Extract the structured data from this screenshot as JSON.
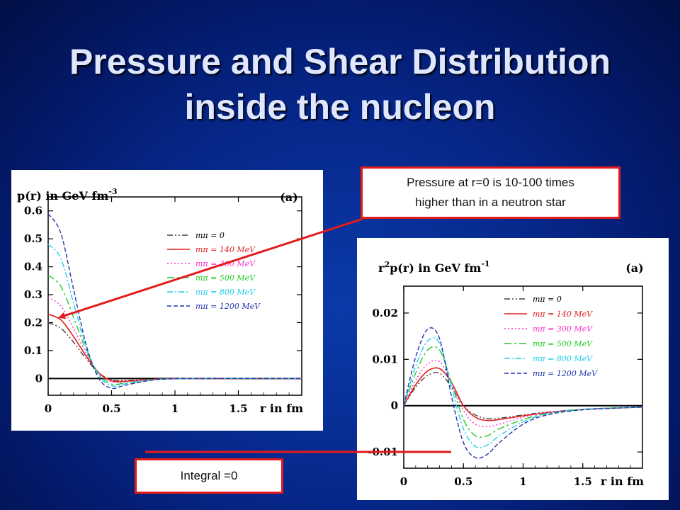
{
  "slide": {
    "title_line1": "Pressure and Shear Distribution",
    "title_line2": "inside the nucleon"
  },
  "callouts": {
    "pressure_line1": "Pressure at r=0 is 10-100 times",
    "pressure_line2": "higher than in a neutron star",
    "integral": "Integral =0"
  },
  "colors": {
    "m0": "#444444",
    "m140": "#e02020",
    "m300": "#ff33cc",
    "m500": "#22cc22",
    "m800": "#22ccee",
    "m1200": "#2233aa",
    "annotation": "#e31b1b"
  },
  "chart_data": [
    {
      "type": "line",
      "title": "",
      "ylabel_prefix": "p(r)  in  GeV fm",
      "ylabel_exp": "-3",
      "panel_label": "(a)",
      "xlabel": "r in fm",
      "xlim": [
        0,
        2.0
      ],
      "ylim": [
        -0.06,
        0.65
      ],
      "xticks": [
        "0",
        "0.5",
        "1",
        "1.5"
      ],
      "yticks": [
        "0",
        "0.1",
        "0.2",
        "0.3",
        "0.4",
        "0.5",
        "0.6"
      ],
      "legend_placement": "top-right",
      "series": [
        {
          "name": "mπ = 0",
          "x": [
            0,
            0.1,
            0.2,
            0.3,
            0.4,
            0.5,
            0.6,
            0.8,
            1.0,
            1.5,
            2.0
          ],
          "values": [
            0.2,
            0.18,
            0.13,
            0.07,
            0.02,
            -0.005,
            -0.007,
            -0.003,
            -0.001,
            0,
            0
          ]
        },
        {
          "name": "mπ = 140 MeV",
          "x": [
            0,
            0.1,
            0.2,
            0.3,
            0.4,
            0.5,
            0.6,
            0.8,
            1.0,
            1.5,
            2.0
          ],
          "values": [
            0.23,
            0.21,
            0.15,
            0.08,
            0.02,
            -0.008,
            -0.01,
            -0.004,
            -0.001,
            0,
            0
          ]
        },
        {
          "name": "mπ = 300 MeV",
          "x": [
            0,
            0.1,
            0.2,
            0.3,
            0.4,
            0.5,
            0.6,
            0.8,
            1.0,
            1.5,
            2.0
          ],
          "values": [
            0.29,
            0.26,
            0.18,
            0.09,
            0.02,
            -0.012,
            -0.013,
            -0.005,
            -0.001,
            0,
            0
          ]
        },
        {
          "name": "mπ = 500 MeV",
          "x": [
            0,
            0.1,
            0.2,
            0.3,
            0.4,
            0.5,
            0.6,
            0.8,
            1.0,
            1.5,
            2.0
          ],
          "values": [
            0.37,
            0.33,
            0.22,
            0.1,
            0.015,
            -0.02,
            -0.017,
            -0.005,
            -0.001,
            0,
            0
          ]
        },
        {
          "name": "mπ = 800 MeV",
          "x": [
            0,
            0.1,
            0.2,
            0.3,
            0.4,
            0.5,
            0.6,
            0.8,
            1.0,
            1.5,
            2.0
          ],
          "values": [
            0.48,
            0.43,
            0.27,
            0.11,
            0.01,
            -0.026,
            -0.02,
            -0.006,
            -0.001,
            0,
            0
          ]
        },
        {
          "name": "mπ = 1200 MeV",
          "x": [
            0,
            0.1,
            0.2,
            0.3,
            0.4,
            0.5,
            0.6,
            0.8,
            1.0,
            1.5,
            2.0
          ],
          "values": [
            0.59,
            0.52,
            0.32,
            0.12,
            0.0,
            -0.035,
            -0.025,
            -0.007,
            -0.001,
            0,
            0
          ]
        }
      ]
    },
    {
      "type": "line",
      "title": "",
      "ylabel_prefix": "r",
      "ylabel_sup": "2",
      "ylabel_mid": "p(r)  in  GeV fm",
      "ylabel_exp": "-1",
      "panel_label": "(a)",
      "xlabel": "r in fm",
      "xlim": [
        0,
        2.0
      ],
      "ylim": [
        -0.0135,
        0.0258
      ],
      "xticks": [
        "0",
        "0.5",
        "1",
        "1.5"
      ],
      "yticks": [
        "-0.01",
        "0",
        "0.01",
        "0.02"
      ],
      "legend_placement": "top-right",
      "series": [
        {
          "name": "mπ = 0",
          "x": [
            0,
            0.1,
            0.2,
            0.3,
            0.4,
            0.5,
            0.6,
            0.7,
            0.8,
            1.0,
            1.2,
            1.5,
            2.0
          ],
          "values": [
            0,
            0.004,
            0.0065,
            0.007,
            0.004,
            0.0,
            -0.002,
            -0.0028,
            -0.0027,
            -0.002,
            -0.0014,
            -0.0008,
            -0.0003
          ]
        },
        {
          "name": "mπ = 140 MeV",
          "x": [
            0,
            0.1,
            0.2,
            0.3,
            0.4,
            0.5,
            0.6,
            0.7,
            0.8,
            1.0,
            1.2,
            1.5,
            2.0
          ],
          "values": [
            0,
            0.0045,
            0.0075,
            0.008,
            0.005,
            0.0,
            -0.0025,
            -0.0032,
            -0.003,
            -0.0022,
            -0.0015,
            -0.0008,
            -0.0003
          ]
        },
        {
          "name": "mπ = 300 MeV",
          "x": [
            0,
            0.1,
            0.2,
            0.3,
            0.4,
            0.5,
            0.6,
            0.7,
            0.8,
            1.0,
            1.2,
            1.5,
            2.0
          ],
          "values": [
            0,
            0.0055,
            0.009,
            0.0095,
            0.005,
            -0.001,
            -0.004,
            -0.0045,
            -0.004,
            -0.0025,
            -0.0015,
            -0.0008,
            -0.0003
          ]
        },
        {
          "name": "mπ = 500 MeV",
          "x": [
            0,
            0.1,
            0.2,
            0.3,
            0.4,
            0.5,
            0.6,
            0.7,
            0.8,
            1.0,
            1.2,
            1.5,
            2.0
          ],
          "values": [
            0,
            0.007,
            0.012,
            0.012,
            0.005,
            -0.003,
            -0.0065,
            -0.0065,
            -0.005,
            -0.003,
            -0.0017,
            -0.0008,
            -0.0003
          ]
        },
        {
          "name": "mπ = 800 MeV",
          "x": [
            0,
            0.1,
            0.2,
            0.3,
            0.4,
            0.5,
            0.6,
            0.7,
            0.8,
            1.0,
            1.2,
            1.5,
            2.0
          ],
          "values": [
            0,
            0.0085,
            0.014,
            0.0135,
            0.004,
            -0.005,
            -0.0088,
            -0.0085,
            -0.0065,
            -0.0035,
            -0.0018,
            -0.0008,
            -0.0003
          ]
        },
        {
          "name": "mπ = 1200 MeV",
          "x": [
            0,
            0.1,
            0.2,
            0.3,
            0.4,
            0.5,
            0.6,
            0.7,
            0.8,
            1.0,
            1.2,
            1.5,
            2.0
          ],
          "values": [
            0,
            0.0105,
            0.0165,
            0.0145,
            0.002,
            -0.008,
            -0.0112,
            -0.0105,
            -0.008,
            -0.004,
            -0.002,
            -0.0009,
            -0.0003
          ]
        }
      ]
    }
  ]
}
